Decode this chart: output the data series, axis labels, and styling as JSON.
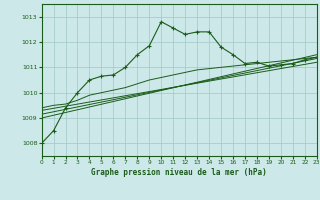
{
  "background_color": "#cce8e8",
  "grid_color": "#a0c8c8",
  "line_color": "#1a5c1a",
  "title": "Graphe pression niveau de la mer (hPa)",
  "xlim": [
    0,
    23
  ],
  "ylim": [
    1007.5,
    1013.5
  ],
  "yticks": [
    1008,
    1009,
    1010,
    1011,
    1012,
    1013
  ],
  "xticks": [
    0,
    1,
    2,
    3,
    4,
    5,
    6,
    7,
    8,
    9,
    10,
    11,
    12,
    13,
    14,
    15,
    16,
    17,
    18,
    19,
    20,
    21,
    22,
    23
  ],
  "main_x": [
    0,
    1,
    2,
    3,
    4,
    5,
    6,
    7,
    8,
    9,
    10,
    11,
    12,
    13,
    14,
    15,
    16,
    17,
    18,
    19,
    20,
    21,
    22,
    23
  ],
  "main_y": [
    1008.0,
    1008.5,
    1009.4,
    1010.0,
    1010.5,
    1010.65,
    1010.7,
    1011.0,
    1011.5,
    1011.85,
    1012.8,
    1012.55,
    1012.3,
    1012.4,
    1012.4,
    1011.8,
    1011.5,
    1011.15,
    1011.2,
    1011.05,
    1011.1,
    1011.15,
    1011.3,
    1011.4
  ],
  "smooth_x": [
    0,
    1,
    2,
    3,
    4,
    5,
    6,
    7,
    8,
    9,
    10,
    11,
    12,
    13,
    14,
    15,
    16,
    17,
    18,
    19,
    20,
    21,
    22,
    23
  ],
  "smooth_y": [
    1009.4,
    1009.5,
    1009.55,
    1009.7,
    1009.9,
    1010.0,
    1010.1,
    1010.2,
    1010.35,
    1010.5,
    1010.6,
    1010.7,
    1010.8,
    1010.9,
    1010.95,
    1011.0,
    1011.05,
    1011.1,
    1011.15,
    1011.2,
    1011.25,
    1011.3,
    1011.35,
    1011.4
  ],
  "line1_x": [
    0,
    23
  ],
  "line1_y": [
    1009.3,
    1011.2
  ],
  "line2_x": [
    0,
    23
  ],
  "line2_y": [
    1009.15,
    1011.35
  ],
  "line3_x": [
    0,
    23
  ],
  "line3_y": [
    1009.0,
    1011.5
  ]
}
